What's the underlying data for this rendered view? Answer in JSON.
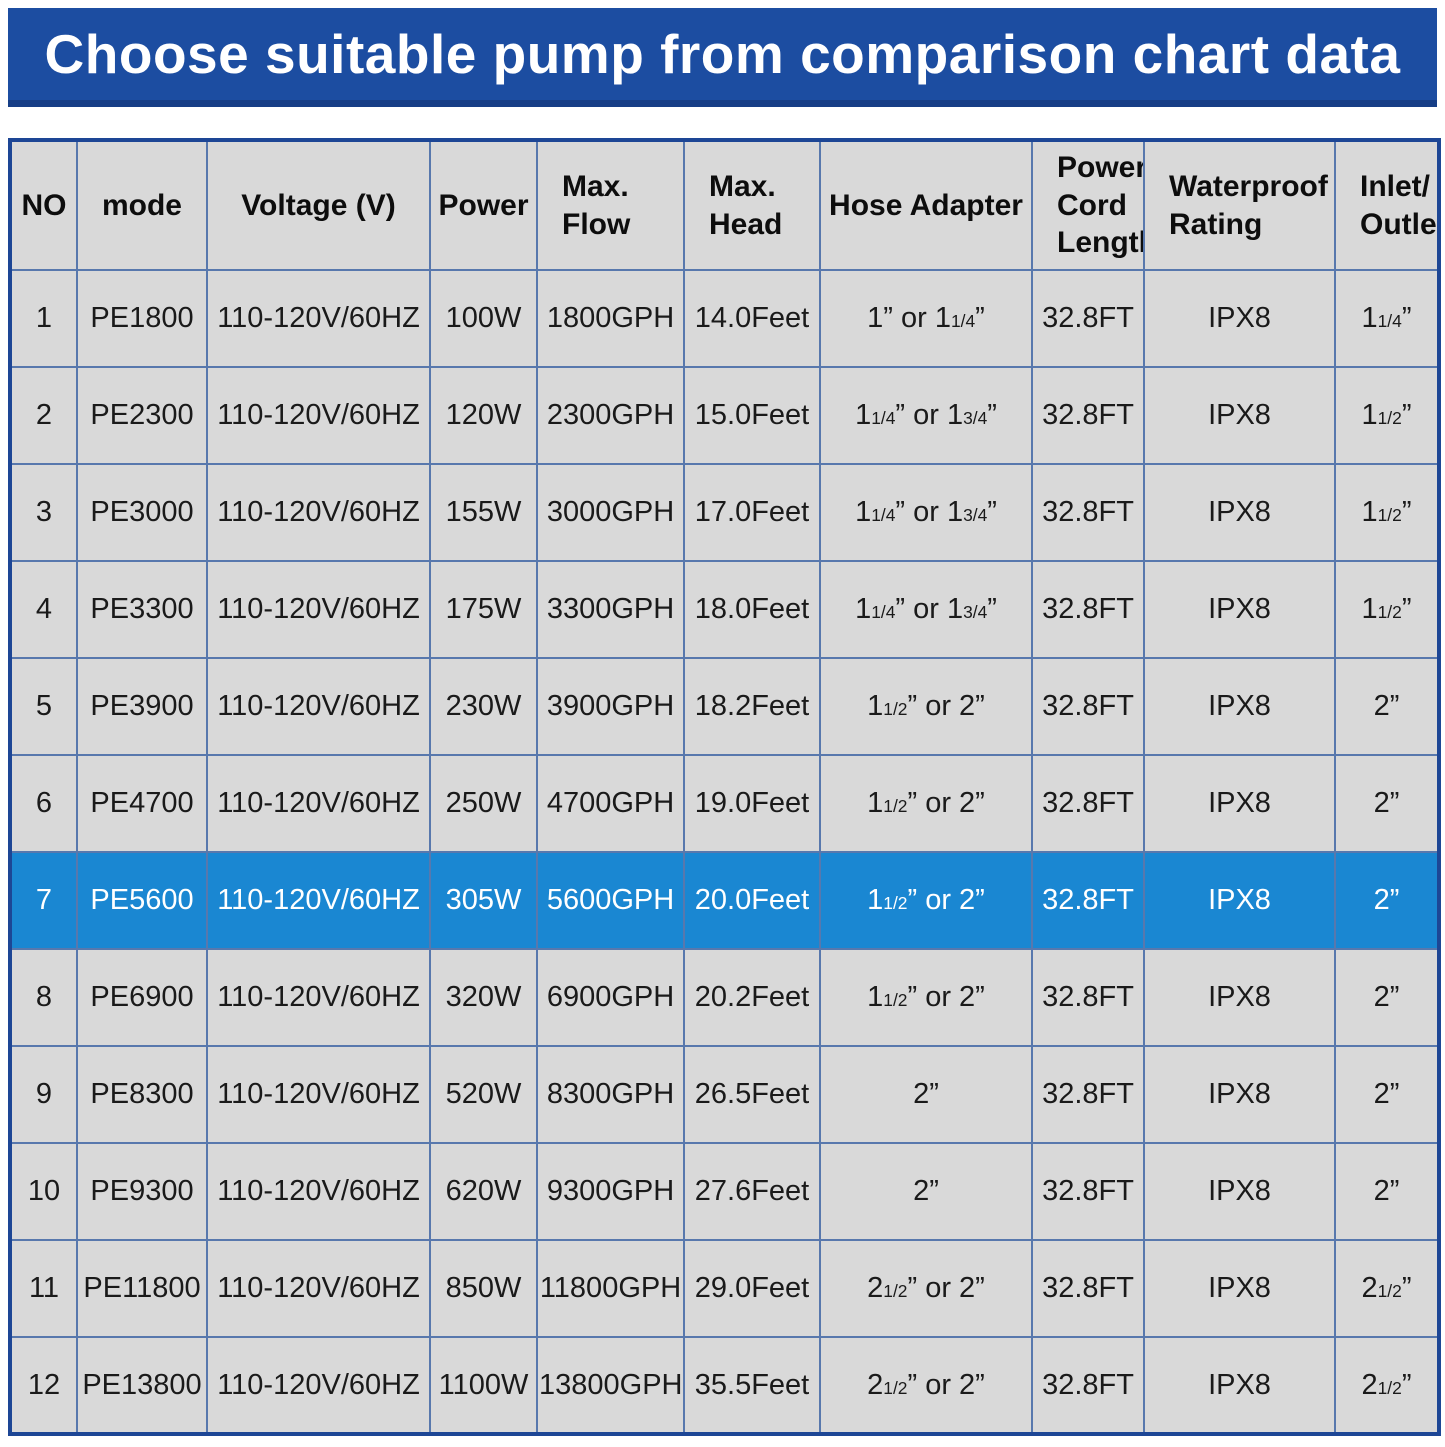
{
  "banner": {
    "title": "Choose suitable pump from comparison chart data"
  },
  "colors": {
    "banner_bg": "#1c4da1",
    "banner_text": "#ffffff",
    "cell_bg": "#d9d9d9",
    "grid_line": "#5878ad",
    "outer_border": "#1d4695",
    "highlight_bg": "#1a87d2",
    "highlight_text": "#ffffff",
    "text": "#1a1a1a"
  },
  "chart_data": {
    "type": "table",
    "title": "Choose suitable pump from comparison chart data",
    "highlighted_row_no": "7",
    "columns": [
      {
        "key": "no",
        "label": "NO"
      },
      {
        "key": "mode",
        "label": "mode"
      },
      {
        "key": "voltage",
        "label": "Voltage (V)"
      },
      {
        "key": "power",
        "label": "Power"
      },
      {
        "key": "max_flow",
        "label": "Max.\nFlow"
      },
      {
        "key": "max_head",
        "label": "Max.\nHead"
      },
      {
        "key": "hose_adapter",
        "label": "Hose Adapter"
      },
      {
        "key": "power_cord_length",
        "label": "Power\nCord\nLength"
      },
      {
        "key": "waterproof_rating",
        "label": "Waterproof\nRating"
      },
      {
        "key": "inlet_outlet",
        "label": "Inlet/\nOutlet"
      }
    ],
    "rows": [
      {
        "no": "1",
        "mode": "PE1800",
        "voltage": "110-120V/60HZ",
        "power": "100W",
        "max_flow": "1800GPH",
        "max_head": "14.0Feet",
        "hose_adapter": "1” or 1{1/4}”",
        "power_cord_length": "32.8FT",
        "waterproof_rating": "IPX8",
        "inlet_outlet": "1{1/4}”"
      },
      {
        "no": "2",
        "mode": "PE2300",
        "voltage": "110-120V/60HZ",
        "power": "120W",
        "max_flow": "2300GPH",
        "max_head": "15.0Feet",
        "hose_adapter": "1{1/4}” or 1{3/4}”",
        "power_cord_length": "32.8FT",
        "waterproof_rating": "IPX8",
        "inlet_outlet": "1{1/2}”"
      },
      {
        "no": "3",
        "mode": "PE3000",
        "voltage": "110-120V/60HZ",
        "power": "155W",
        "max_flow": "3000GPH",
        "max_head": "17.0Feet",
        "hose_adapter": "1{1/4}” or 1{3/4}”",
        "power_cord_length": "32.8FT",
        "waterproof_rating": "IPX8",
        "inlet_outlet": "1{1/2}”"
      },
      {
        "no": "4",
        "mode": "PE3300",
        "voltage": "110-120V/60HZ",
        "power": "175W",
        "max_flow": "3300GPH",
        "max_head": "18.0Feet",
        "hose_adapter": "1{1/4}” or 1{3/4}”",
        "power_cord_length": "32.8FT",
        "waterproof_rating": "IPX8",
        "inlet_outlet": "1{1/2}”"
      },
      {
        "no": "5",
        "mode": "PE3900",
        "voltage": "110-120V/60HZ",
        "power": "230W",
        "max_flow": "3900GPH",
        "max_head": "18.2Feet",
        "hose_adapter": "1{1/2}” or 2”",
        "power_cord_length": "32.8FT",
        "waterproof_rating": "IPX8",
        "inlet_outlet": "2”"
      },
      {
        "no": "6",
        "mode": "PE4700",
        "voltage": "110-120V/60HZ",
        "power": "250W",
        "max_flow": "4700GPH",
        "max_head": "19.0Feet",
        "hose_adapter": "1{1/2}” or 2”",
        "power_cord_length": "32.8FT",
        "waterproof_rating": "IPX8",
        "inlet_outlet": "2”"
      },
      {
        "no": "7",
        "mode": "PE5600",
        "voltage": "110-120V/60HZ",
        "power": "305W",
        "max_flow": "5600GPH",
        "max_head": "20.0Feet",
        "hose_adapter": "1{1/2}” or 2”",
        "power_cord_length": "32.8FT",
        "waterproof_rating": "IPX8",
        "inlet_outlet": "2”"
      },
      {
        "no": "8",
        "mode": "PE6900",
        "voltage": "110-120V/60HZ",
        "power": "320W",
        "max_flow": "6900GPH",
        "max_head": "20.2Feet",
        "hose_adapter": "1{1/2}” or 2”",
        "power_cord_length": "32.8FT",
        "waterproof_rating": "IPX8",
        "inlet_outlet": "2”"
      },
      {
        "no": "9",
        "mode": "PE8300",
        "voltage": "110-120V/60HZ",
        "power": "520W",
        "max_flow": "8300GPH",
        "max_head": "26.5Feet",
        "hose_adapter": "2”",
        "power_cord_length": "32.8FT",
        "waterproof_rating": "IPX8",
        "inlet_outlet": "2”"
      },
      {
        "no": "10",
        "mode": "PE9300",
        "voltage": "110-120V/60HZ",
        "power": "620W",
        "max_flow": "9300GPH",
        "max_head": "27.6Feet",
        "hose_adapter": "2”",
        "power_cord_length": "32.8FT",
        "waterproof_rating": "IPX8",
        "inlet_outlet": "2”"
      },
      {
        "no": "11",
        "mode": "PE11800",
        "voltage": "110-120V/60HZ",
        "power": "850W",
        "max_flow": "11800GPH",
        "max_head": "29.0Feet",
        "hose_adapter": "2{1/2}” or 2”",
        "power_cord_length": "32.8FT",
        "waterproof_rating": "IPX8",
        "inlet_outlet": "2{1/2}”"
      },
      {
        "no": "12",
        "mode": "PE13800",
        "voltage": "110-120V/60HZ",
        "power": "1100W",
        "max_flow": "13800GPH",
        "max_head": "35.5Feet",
        "hose_adapter": "2{1/2}” or 2”",
        "power_cord_length": "32.8FT",
        "waterproof_rating": "IPX8",
        "inlet_outlet": "2{1/2}”"
      }
    ]
  }
}
